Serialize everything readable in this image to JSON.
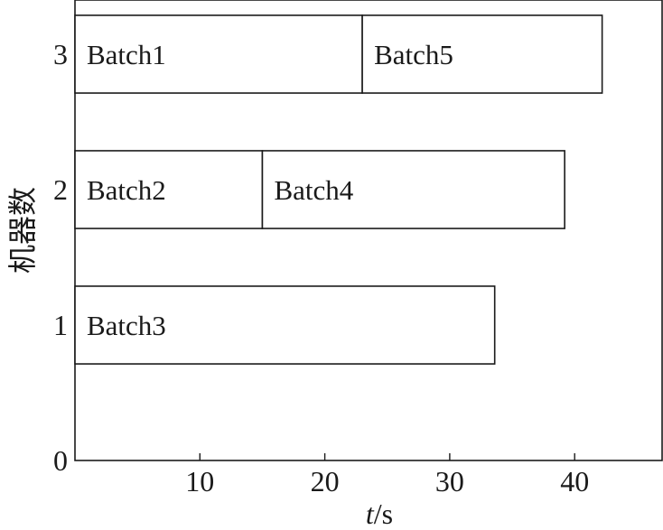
{
  "chart_data": {
    "type": "bar",
    "orientation": "horizontal",
    "subtype": "gantt",
    "title": "",
    "xlabel_italic": "t",
    "xlabel_unit": "/s",
    "ylabel": "机器数",
    "xlim": [
      0,
      47
    ],
    "ylim": [
      0,
      3.4
    ],
    "xticks": [
      10,
      20,
      30,
      40
    ],
    "yticks": [
      0,
      1,
      2,
      3
    ],
    "grid": false,
    "tasks": [
      {
        "label": "Batch1",
        "machine": 3,
        "start": 0,
        "end": 23
      },
      {
        "label": "Batch5",
        "machine": 3,
        "start": 23,
        "end": 42.2
      },
      {
        "label": "Batch2",
        "machine": 2,
        "start": 0,
        "end": 15
      },
      {
        "label": "Batch4",
        "machine": 2,
        "start": 15,
        "end": 39.2
      },
      {
        "label": "Batch3",
        "machine": 1,
        "start": 0,
        "end": 33.6
      }
    ]
  }
}
